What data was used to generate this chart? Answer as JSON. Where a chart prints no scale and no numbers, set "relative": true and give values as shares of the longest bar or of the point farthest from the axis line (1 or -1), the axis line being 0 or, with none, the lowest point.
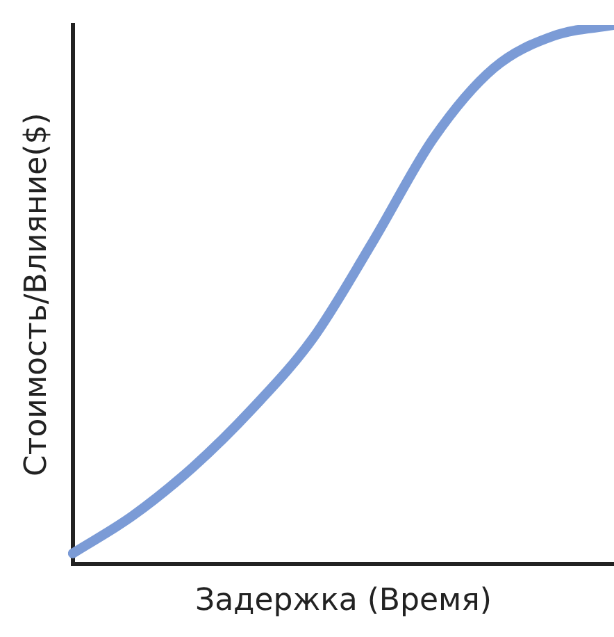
{
  "chart_data": {
    "type": "line",
    "relative": true,
    "xlabel": "Задержка (Время)",
    "ylabel": "Стоимость/Влияние($)",
    "categories": [
      null,
      null,
      null,
      null,
      null,
      null,
      null,
      null,
      null,
      null
    ],
    "series": [
      {
        "color": "#7b9bd6",
        "values": [
          0.02,
          0.09,
          0.18,
          0.29,
          0.42,
          0.6,
          0.79,
          0.92,
          0.98,
          1
        ]
      }
    ],
    "grid": false,
    "legend": false,
    "marker": "none",
    "line_style": "solid"
  }
}
